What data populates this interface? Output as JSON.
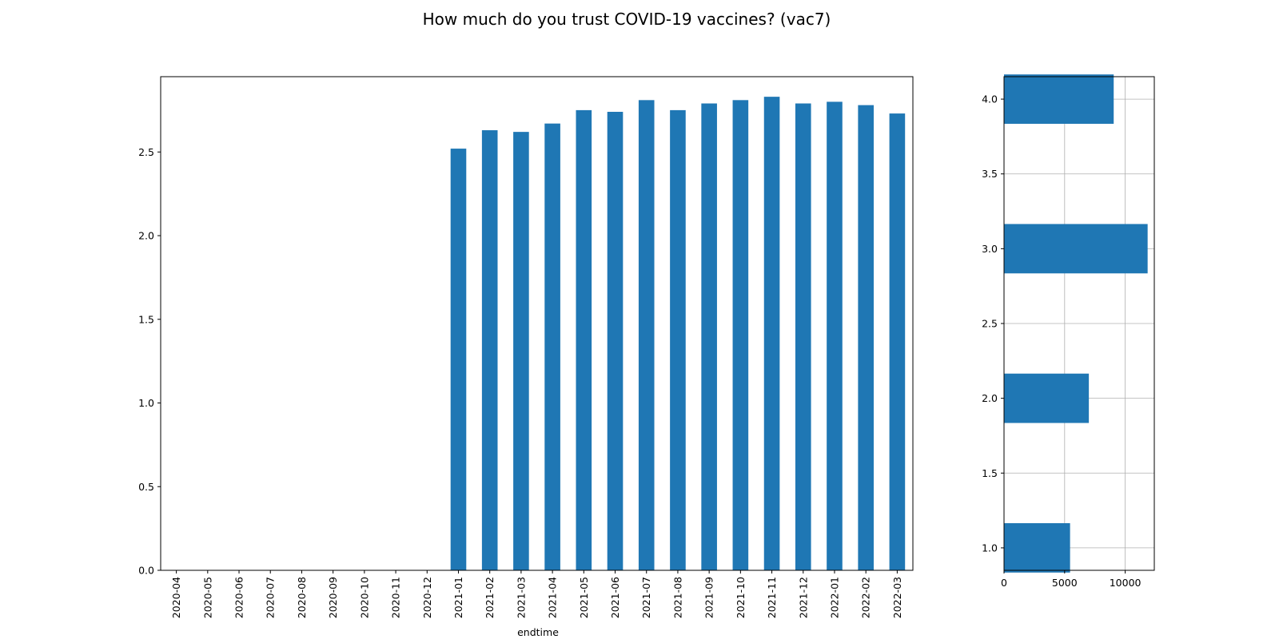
{
  "chart_data": [
    {
      "type": "bar",
      "title": "How much do you trust COVID-19 vaccines? (vac7)",
      "xlabel": "endtime",
      "ylabel": "",
      "ylim": [
        0,
        2.95
      ],
      "yticks": [
        "0.0",
        "0.5",
        "1.0",
        "1.5",
        "2.0",
        "2.5"
      ],
      "grid": false,
      "categories": [
        "2020-04",
        "2020-05",
        "2020-06",
        "2020-07",
        "2020-08",
        "2020-09",
        "2020-10",
        "2020-11",
        "2020-12",
        "2021-01",
        "2021-02",
        "2021-03",
        "2021-04",
        "2021-05",
        "2021-06",
        "2021-07",
        "2021-08",
        "2021-09",
        "2021-10",
        "2021-11",
        "2021-12",
        "2022-01",
        "2022-02",
        "2022-03"
      ],
      "values": [
        0,
        0,
        0,
        0,
        0,
        0,
        0,
        0,
        0,
        2.52,
        2.63,
        2.62,
        2.67,
        2.75,
        2.74,
        2.81,
        2.75,
        2.79,
        2.81,
        2.83,
        2.79,
        2.8,
        2.78,
        2.73
      ],
      "color": "#1f77b4"
    },
    {
      "type": "bar",
      "orientation": "horizontal",
      "title": "",
      "xlabel": "",
      "ylabel": "",
      "xlim": [
        0,
        12400
      ],
      "ylim": [
        0.85,
        4.15
      ],
      "xticks": [
        "0",
        "5000",
        "10000"
      ],
      "yticks": [
        "1.0",
        "1.5",
        "2.0",
        "2.5",
        "3.0",
        "3.5",
        "4.0"
      ],
      "grid": true,
      "categories": [
        1.0,
        2.0,
        3.0,
        4.0
      ],
      "values": [
        5450,
        7000,
        11850,
        9050
      ],
      "color": "#1f77b4"
    }
  ]
}
